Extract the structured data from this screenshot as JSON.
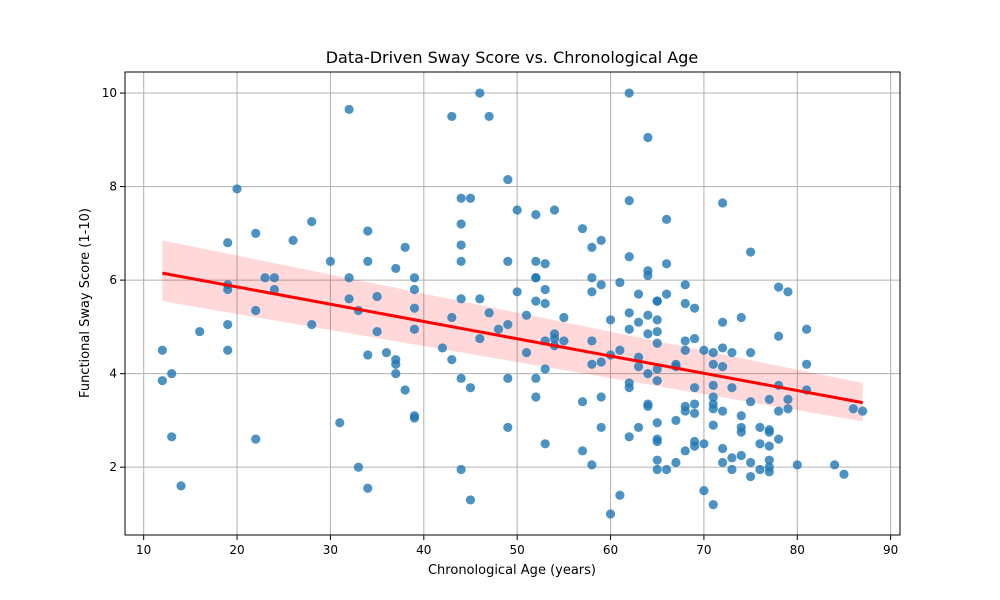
{
  "chart_data": {
    "type": "scatter",
    "title": "Data-Driven Sway Score vs. Chronological Age",
    "xlabel": "Chronological Age (years)",
    "ylabel": "Functional Sway Score (1-10)",
    "xlim": [
      8,
      91
    ],
    "ylim": [
      0.55,
      10.45
    ],
    "xticks": [
      10,
      20,
      30,
      40,
      50,
      60,
      70,
      80,
      90
    ],
    "yticks": [
      2,
      4,
      6,
      8,
      10
    ],
    "grid": true,
    "regression": {
      "x": [
        12,
        87
      ],
      "y": [
        6.15,
        3.38
      ],
      "ci_upper": [
        6.85,
        3.8
      ],
      "ci_lower": [
        5.55,
        2.98
      ]
    },
    "points": [
      [
        12,
        4.5
      ],
      [
        12,
        3.85
      ],
      [
        13,
        4.0
      ],
      [
        13,
        2.65
      ],
      [
        14,
        1.6
      ],
      [
        16,
        4.9
      ],
      [
        19,
        6.8
      ],
      [
        19,
        5.9
      ],
      [
        19,
        5.8
      ],
      [
        19,
        5.05
      ],
      [
        19,
        4.5
      ],
      [
        20,
        7.95
      ],
      [
        22,
        7.0
      ],
      [
        22,
        5.35
      ],
      [
        22,
        2.6
      ],
      [
        23,
        6.05
      ],
      [
        24,
        6.05
      ],
      [
        24,
        5.8
      ],
      [
        26,
        6.85
      ],
      [
        28,
        7.25
      ],
      [
        28,
        5.05
      ],
      [
        30,
        6.4
      ],
      [
        31,
        2.95
      ],
      [
        32,
        9.65
      ],
      [
        32,
        6.05
      ],
      [
        32,
        5.6
      ],
      [
        33,
        5.35
      ],
      [
        33,
        2.0
      ],
      [
        34,
        7.05
      ],
      [
        34,
        6.4
      ],
      [
        34,
        4.4
      ],
      [
        34,
        1.55
      ],
      [
        35,
        5.65
      ],
      [
        35,
        4.9
      ],
      [
        36,
        4.45
      ],
      [
        37,
        6.25
      ],
      [
        37,
        4.3
      ],
      [
        37,
        4.2
      ],
      [
        37,
        4.0
      ],
      [
        38,
        6.7
      ],
      [
        38,
        3.65
      ],
      [
        39,
        6.05
      ],
      [
        39,
        5.8
      ],
      [
        39,
        5.4
      ],
      [
        39,
        4.95
      ],
      [
        39,
        3.1
      ],
      [
        39,
        3.05
      ],
      [
        42,
        4.55
      ],
      [
        43,
        9.5
      ],
      [
        43,
        5.2
      ],
      [
        43,
        4.3
      ],
      [
        44,
        7.75
      ],
      [
        44,
        7.2
      ],
      [
        44,
        6.75
      ],
      [
        44,
        6.4
      ],
      [
        44,
        5.6
      ],
      [
        44,
        3.9
      ],
      [
        44,
        1.95
      ],
      [
        45,
        7.75
      ],
      [
        45,
        3.7
      ],
      [
        45,
        1.3
      ],
      [
        46,
        10.0
      ],
      [
        46,
        5.6
      ],
      [
        46,
        4.75
      ],
      [
        47,
        9.5
      ],
      [
        47,
        5.3
      ],
      [
        48,
        4.95
      ],
      [
        49,
        8.15
      ],
      [
        49,
        6.4
      ],
      [
        49,
        5.05
      ],
      [
        49,
        3.9
      ],
      [
        49,
        2.85
      ],
      [
        50,
        7.5
      ],
      [
        50,
        5.75
      ],
      [
        51,
        5.25
      ],
      [
        51,
        4.45
      ],
      [
        52,
        7.4
      ],
      [
        52,
        6.4
      ],
      [
        52,
        6.05
      ],
      [
        52,
        6.05
      ],
      [
        52,
        5.55
      ],
      [
        52,
        3.9
      ],
      [
        52,
        3.5
      ],
      [
        53,
        6.35
      ],
      [
        53,
        5.8
      ],
      [
        53,
        5.5
      ],
      [
        53,
        4.7
      ],
      [
        53,
        4.1
      ],
      [
        53,
        2.5
      ],
      [
        54,
        7.5
      ],
      [
        54,
        4.85
      ],
      [
        54,
        4.75
      ],
      [
        54,
        4.6
      ],
      [
        55,
        5.2
      ],
      [
        55,
        4.7
      ],
      [
        57,
        7.1
      ],
      [
        57,
        3.4
      ],
      [
        57,
        2.35
      ],
      [
        58,
        6.7
      ],
      [
        58,
        6.05
      ],
      [
        58,
        5.75
      ],
      [
        58,
        4.7
      ],
      [
        58,
        4.2
      ],
      [
        58,
        2.05
      ],
      [
        59,
        6.85
      ],
      [
        59,
        5.9
      ],
      [
        59,
        4.25
      ],
      [
        59,
        3.5
      ],
      [
        59,
        2.85
      ],
      [
        60,
        5.15
      ],
      [
        60,
        4.4
      ],
      [
        60,
        1.0
      ],
      [
        61,
        5.95
      ],
      [
        61,
        4.5
      ],
      [
        61,
        1.4
      ],
      [
        62,
        10.0
      ],
      [
        62,
        7.7
      ],
      [
        62,
        6.5
      ],
      [
        62,
        5.3
      ],
      [
        62,
        4.95
      ],
      [
        62,
        3.8
      ],
      [
        62,
        3.7
      ],
      [
        62,
        2.65
      ],
      [
        63,
        5.7
      ],
      [
        63,
        5.1
      ],
      [
        63,
        4.35
      ],
      [
        63,
        4.15
      ],
      [
        63,
        2.85
      ],
      [
        64,
        9.05
      ],
      [
        64,
        6.2
      ],
      [
        64,
        6.1
      ],
      [
        64,
        5.25
      ],
      [
        64,
        4.85
      ],
      [
        64,
        4.0
      ],
      [
        64,
        3.35
      ],
      [
        64,
        3.3
      ],
      [
        65,
        5.55
      ],
      [
        65,
        5.55
      ],
      [
        65,
        5.15
      ],
      [
        65,
        4.9
      ],
      [
        65,
        4.65
      ],
      [
        65,
        4.1
      ],
      [
        65,
        3.85
      ],
      [
        65,
        2.95
      ],
      [
        65,
        2.6
      ],
      [
        65,
        2.55
      ],
      [
        65,
        2.15
      ],
      [
        65,
        1.95
      ],
      [
        66,
        7.3
      ],
      [
        66,
        6.35
      ],
      [
        66,
        5.7
      ],
      [
        66,
        1.95
      ],
      [
        67,
        4.2
      ],
      [
        67,
        4.15
      ],
      [
        67,
        3.0
      ],
      [
        67,
        2.1
      ],
      [
        68,
        5.9
      ],
      [
        68,
        5.5
      ],
      [
        68,
        4.7
      ],
      [
        68,
        4.5
      ],
      [
        68,
        3.3
      ],
      [
        68,
        3.2
      ],
      [
        68,
        2.35
      ],
      [
        69,
        5.4
      ],
      [
        69,
        4.75
      ],
      [
        69,
        3.7
      ],
      [
        69,
        3.35
      ],
      [
        69,
        3.15
      ],
      [
        69,
        2.55
      ],
      [
        69,
        2.45
      ],
      [
        70,
        4.5
      ],
      [
        70,
        2.5
      ],
      [
        70,
        1.5
      ],
      [
        71,
        4.45
      ],
      [
        71,
        4.2
      ],
      [
        71,
        3.75
      ],
      [
        71,
        3.5
      ],
      [
        71,
        3.35
      ],
      [
        71,
        3.25
      ],
      [
        71,
        2.9
      ],
      [
        71,
        1.2
      ],
      [
        72,
        7.65
      ],
      [
        72,
        5.1
      ],
      [
        72,
        4.55
      ],
      [
        72,
        4.15
      ],
      [
        72,
        3.2
      ],
      [
        72,
        2.4
      ],
      [
        72,
        2.1
      ],
      [
        73,
        4.45
      ],
      [
        73,
        3.7
      ],
      [
        73,
        2.2
      ],
      [
        73,
        1.95
      ],
      [
        74,
        5.2
      ],
      [
        74,
        3.1
      ],
      [
        74,
        2.85
      ],
      [
        74,
        2.75
      ],
      [
        74,
        2.25
      ],
      [
        75,
        6.6
      ],
      [
        75,
        4.45
      ],
      [
        75,
        3.4
      ],
      [
        75,
        2.1
      ],
      [
        75,
        1.8
      ],
      [
        76,
        2.85
      ],
      [
        76,
        2.5
      ],
      [
        76,
        1.95
      ],
      [
        77,
        3.45
      ],
      [
        77,
        2.8
      ],
      [
        77,
        2.75
      ],
      [
        77,
        2.45
      ],
      [
        77,
        2.15
      ],
      [
        77,
        2.0
      ],
      [
        77,
        1.9
      ],
      [
        78,
        5.85
      ],
      [
        78,
        4.8
      ],
      [
        78,
        3.75
      ],
      [
        78,
        3.2
      ],
      [
        78,
        2.6
      ],
      [
        79,
        5.75
      ],
      [
        79,
        3.45
      ],
      [
        79,
        3.25
      ],
      [
        80,
        2.05
      ],
      [
        81,
        4.95
      ],
      [
        81,
        4.2
      ],
      [
        81,
        3.65
      ],
      [
        84,
        2.05
      ],
      [
        85,
        1.85
      ],
      [
        86,
        3.25
      ],
      [
        87,
        3.2
      ]
    ]
  }
}
